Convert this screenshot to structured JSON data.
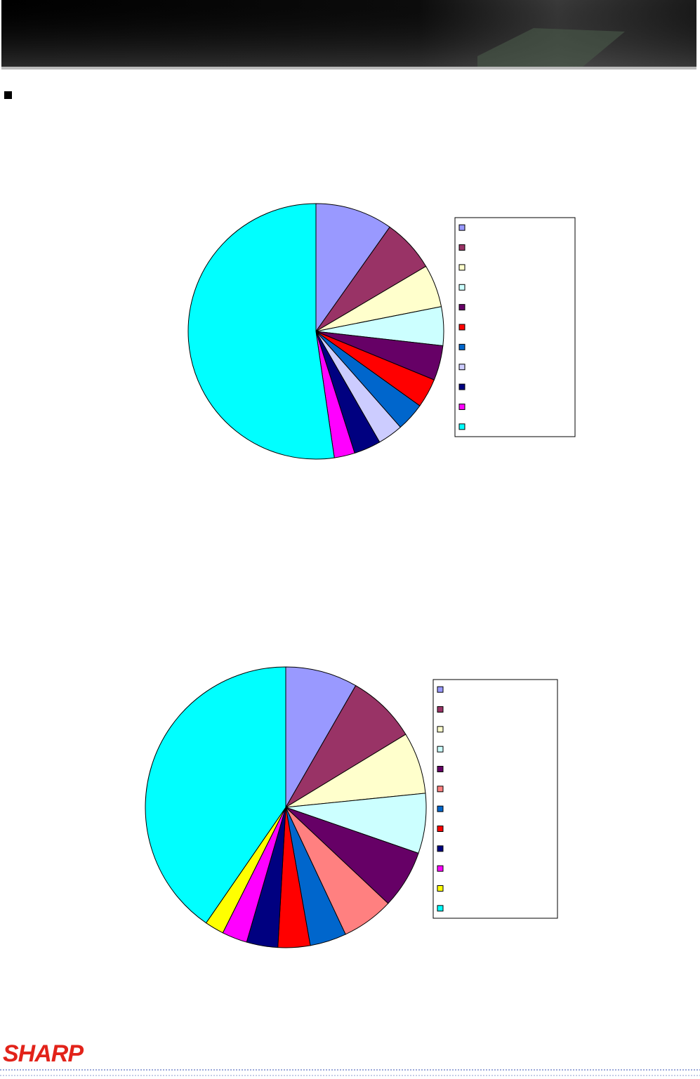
{
  "logo": "SHARP",
  "chart_data": [
    {
      "type": "pie",
      "categories": [
        null,
        null,
        null,
        null,
        null,
        null,
        null,
        null,
        null,
        null,
        null
      ],
      "values": [
        9.8,
        6.7,
        5.4,
        4.9,
        4.4,
        3.7,
        3.6,
        3.2,
        3.4,
        2.6,
        52.3
      ],
      "colors": [
        "#9999ff",
        "#993366",
        "#ffffcc",
        "#ccffff",
        "#660066",
        "#ff0000",
        "#0066cc",
        "#ccccff",
        "#000080",
        "#ff00ff",
        "#00ffff"
      ],
      "legend": "right"
    },
    {
      "type": "pie",
      "categories": [
        null,
        null,
        null,
        null,
        null,
        null,
        null,
        null,
        null,
        null,
        null,
        null
      ],
      "values": [
        8.3,
        8.0,
        7.1,
        6.9,
        6.7,
        6.0,
        4.2,
        3.7,
        3.6,
        2.9,
        2.2,
        40.4
      ],
      "colors": [
        "#9999ff",
        "#993366",
        "#ffffcc",
        "#ccffff",
        "#660066",
        "#ff8080",
        "#0066cc",
        "#ff0000",
        "#000080",
        "#ff00ff",
        "#ffff00",
        "#00ffff"
      ],
      "legend": "right"
    }
  ]
}
